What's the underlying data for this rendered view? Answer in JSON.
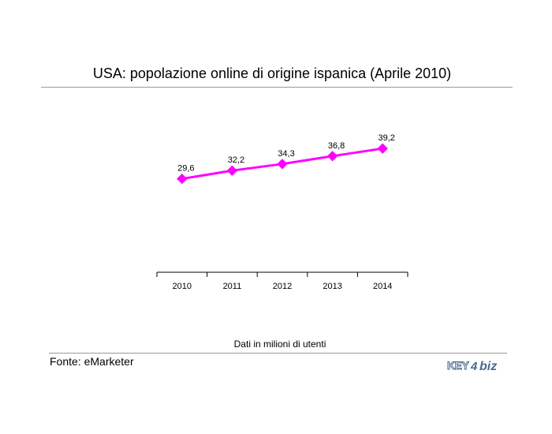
{
  "header": {
    "title": "USA: popolazione online di origine ispanica (Aprile 2010)"
  },
  "chart_data": {
    "type": "line",
    "title": "USA: popolazione online di origine ispanica (Aprile 2010)",
    "categories": [
      "2010",
      "2011",
      "2012",
      "2013",
      "2014"
    ],
    "series": [
      {
        "values": [
          29.6,
          32.2,
          34.3,
          36.8,
          39.2
        ],
        "data_labels": [
          "29,6",
          "32,2",
          "34,3",
          "36,8",
          "39,2"
        ],
        "color": "#ff00ff"
      }
    ],
    "ylim": [
      0,
      60
    ],
    "grid": false,
    "legend": "none"
  },
  "footer": {
    "unit_note": "Dati in milioni di utenti",
    "source": "Fonte: eMarketer",
    "logo_text": "KEY4biz"
  },
  "colors": {
    "series": "#ff00ff",
    "axis": "#000000",
    "rule": "#9a9a9a",
    "logo": "#4a6a90"
  }
}
